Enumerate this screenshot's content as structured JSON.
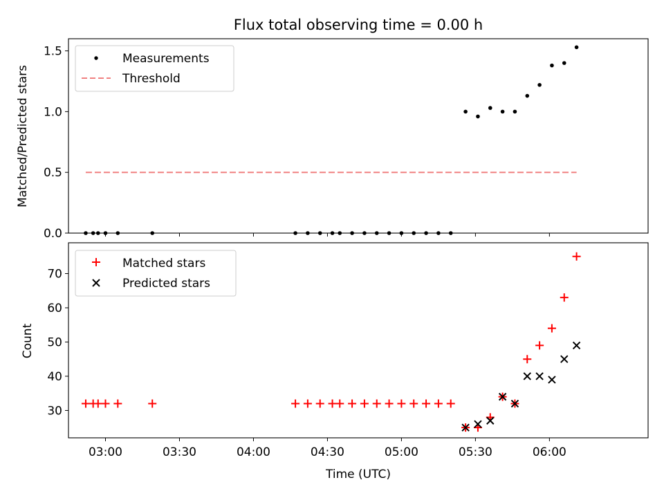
{
  "chart_data": {
    "title": "Flux total observing time = 0.00 h",
    "xlabel": "Time (UTC)",
    "x_axis": {
      "type": "time",
      "range": [
        "02:45",
        "06:40"
      ],
      "ticks": [
        "03:00",
        "03:30",
        "04:00",
        "04:30",
        "05:00",
        "05:30",
        "06:00"
      ]
    },
    "top": {
      "type": "scatter",
      "ylabel": "Matched/Predicted stars",
      "ylim": [
        0,
        1.6
      ],
      "yticks": [
        "0.0",
        "0.5",
        "1.0",
        "1.5"
      ],
      "legend_position": "top-left",
      "series": [
        {
          "name": "Measurements",
          "marker": "dot",
          "color": "#000000",
          "points": [
            [
              "02:52",
              0.0
            ],
            [
              "02:55",
              0.0
            ],
            [
              "02:57",
              0.0
            ],
            [
              "03:00",
              0.0
            ],
            [
              "03:05",
              0.0
            ],
            [
              "03:19",
              0.0
            ],
            [
              "04:17",
              0.0
            ],
            [
              "04:22",
              0.0
            ],
            [
              "04:27",
              0.0
            ],
            [
              "04:32",
              0.0
            ],
            [
              "04:35",
              0.0
            ],
            [
              "04:40",
              0.0
            ],
            [
              "04:45",
              0.0
            ],
            [
              "04:50",
              0.0
            ],
            [
              "04:55",
              0.0
            ],
            [
              "05:00",
              0.0
            ],
            [
              "05:05",
              0.0
            ],
            [
              "05:10",
              0.0
            ],
            [
              "05:15",
              0.0
            ],
            [
              "05:20",
              0.0
            ],
            [
              "05:26",
              1.0
            ],
            [
              "05:31",
              0.96
            ],
            [
              "05:36",
              1.03
            ],
            [
              "05:41",
              1.0
            ],
            [
              "05:46",
              1.0
            ],
            [
              "05:51",
              1.13
            ],
            [
              "05:56",
              1.22
            ],
            [
              "06:01",
              1.38
            ],
            [
              "06:06",
              1.4
            ],
            [
              "06:11",
              1.53
            ]
          ]
        },
        {
          "name": "Threshold",
          "marker": "dashed-line",
          "color": "#f08080",
          "points": [
            [
              "02:52",
              0.5
            ],
            [
              "06:11",
              0.5
            ]
          ]
        }
      ]
    },
    "bottom": {
      "type": "scatter",
      "ylabel": "Count",
      "ylim": [
        22,
        79
      ],
      "yticks": [
        "30",
        "40",
        "50",
        "60",
        "70"
      ],
      "legend_position": "top-left",
      "series": [
        {
          "name": "Matched stars",
          "marker": "plus",
          "color": "#ff0000",
          "points": [
            [
              "02:52",
              32
            ],
            [
              "02:55",
              32
            ],
            [
              "02:57",
              32
            ],
            [
              "03:00",
              32
            ],
            [
              "03:05",
              32
            ],
            [
              "03:19",
              32
            ],
            [
              "04:17",
              32
            ],
            [
              "04:22",
              32
            ],
            [
              "04:27",
              32
            ],
            [
              "04:32",
              32
            ],
            [
              "04:35",
              32
            ],
            [
              "04:40",
              32
            ],
            [
              "04:45",
              32
            ],
            [
              "04:50",
              32
            ],
            [
              "04:55",
              32
            ],
            [
              "05:00",
              32
            ],
            [
              "05:05",
              32
            ],
            [
              "05:10",
              32
            ],
            [
              "05:15",
              32
            ],
            [
              "05:20",
              32
            ],
            [
              "05:26",
              25
            ],
            [
              "05:31",
              25
            ],
            [
              "05:36",
              28
            ],
            [
              "05:41",
              34
            ],
            [
              "05:46",
              32
            ],
            [
              "05:51",
              45
            ],
            [
              "05:56",
              49
            ],
            [
              "06:01",
              54
            ],
            [
              "06:06",
              63
            ],
            [
              "06:11",
              75
            ]
          ]
        },
        {
          "name": "Predicted stars",
          "marker": "x",
          "color": "#000000",
          "points": [
            [
              "05:26",
              25
            ],
            [
              "05:31",
              26
            ],
            [
              "05:36",
              27
            ],
            [
              "05:41",
              34
            ],
            [
              "05:46",
              32
            ],
            [
              "05:51",
              40
            ],
            [
              "05:56",
              40
            ],
            [
              "06:01",
              39
            ],
            [
              "06:06",
              45
            ],
            [
              "06:11",
              49
            ]
          ]
        }
      ]
    }
  }
}
